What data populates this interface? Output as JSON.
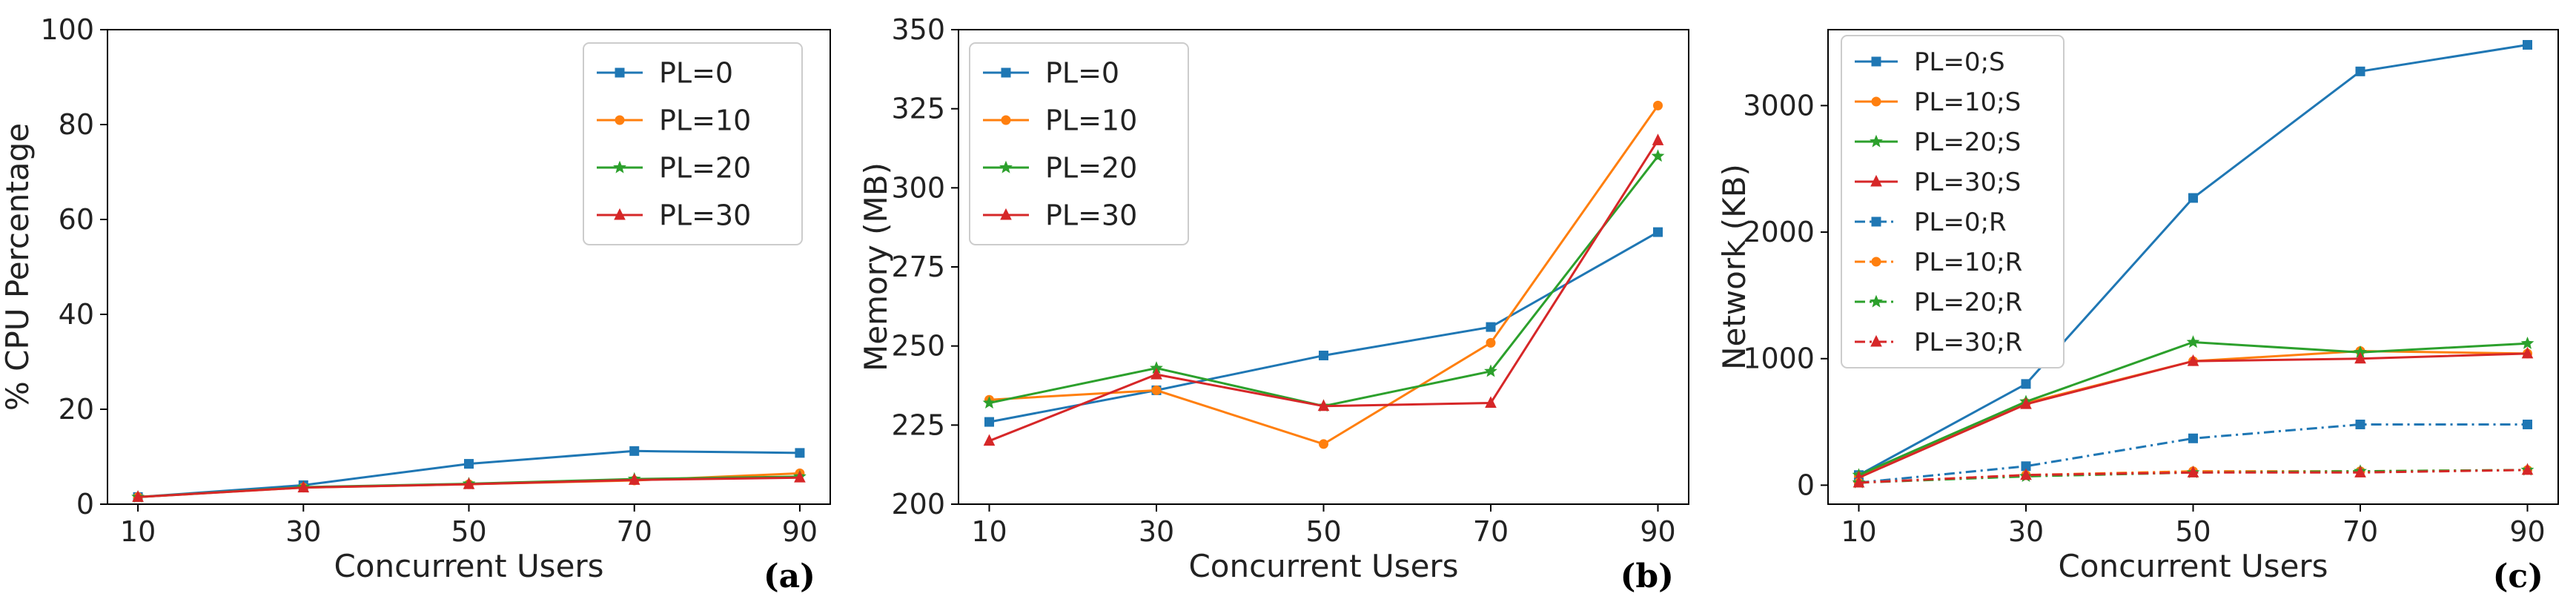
{
  "colors": {
    "PL=0": "#1f77b4",
    "PL=10": "#ff7f0e",
    "PL=20": "#2ca02c",
    "PL=30": "#d62728"
  },
  "chart_data": [
    {
      "type": "line",
      "panel_label": "(a)",
      "xlabel": "Concurrent Users",
      "ylabel": "% CPU Percentage",
      "x": [
        10,
        30,
        50,
        70,
        90
      ],
      "x_ticks": [
        "10",
        "30",
        "50",
        "70",
        "90"
      ],
      "ylim": [
        0,
        100
      ],
      "y_ticks": [
        0,
        20,
        40,
        60,
        80,
        100
      ],
      "legend_position": "top-right",
      "series": [
        {
          "name": "PL=0",
          "color_key": "PL=0",
          "marker": "square",
          "dash": "solid",
          "values": [
            1.5,
            4.0,
            8.5,
            11.2,
            10.8
          ]
        },
        {
          "name": "PL=10",
          "color_key": "PL=10",
          "marker": "circle",
          "dash": "solid",
          "values": [
            1.5,
            3.5,
            4.2,
            5.0,
            6.5
          ]
        },
        {
          "name": "PL=20",
          "color_key": "PL=20",
          "marker": "star",
          "dash": "solid",
          "values": [
            1.5,
            3.6,
            4.3,
            5.3,
            5.8
          ]
        },
        {
          "name": "PL=30",
          "color_key": "PL=30",
          "marker": "triangle",
          "dash": "solid",
          "values": [
            1.5,
            3.5,
            4.2,
            5.1,
            5.6
          ]
        }
      ]
    },
    {
      "type": "line",
      "panel_label": "(b)",
      "xlabel": "Concurrent Users",
      "ylabel": "Memory (MB)",
      "x": [
        10,
        30,
        50,
        70,
        90
      ],
      "x_ticks": [
        "10",
        "30",
        "50",
        "70",
        "90"
      ],
      "ylim": [
        200,
        350
      ],
      "y_ticks": [
        200,
        225,
        250,
        275,
        300,
        325,
        350
      ],
      "legend_position": "top-left",
      "series": [
        {
          "name": "PL=0",
          "color_key": "PL=0",
          "marker": "square",
          "dash": "solid",
          "values": [
            226,
            236,
            247,
            256,
            286
          ]
        },
        {
          "name": "PL=10",
          "color_key": "PL=10",
          "marker": "circle",
          "dash": "solid",
          "values": [
            233,
            236,
            219,
            251,
            326
          ]
        },
        {
          "name": "PL=20",
          "color_key": "PL=20",
          "marker": "star",
          "dash": "solid",
          "values": [
            232,
            243,
            231,
            242,
            310
          ]
        },
        {
          "name": "PL=30",
          "color_key": "PL=30",
          "marker": "triangle",
          "dash": "solid",
          "values": [
            220,
            241,
            231,
            232,
            315
          ]
        }
      ]
    },
    {
      "type": "line",
      "panel_label": "(c)",
      "xlabel": "Concurrent Users",
      "ylabel": "Network (KB)",
      "x": [
        10,
        30,
        50,
        70,
        90
      ],
      "x_ticks": [
        "10",
        "30",
        "50",
        "70",
        "90"
      ],
      "ylim": [
        -150,
        3600
      ],
      "y_ticks": [
        0,
        1000,
        2000,
        3000
      ],
      "legend_position": "top-left",
      "series": [
        {
          "name": "PL=0;S",
          "color_key": "PL=0",
          "marker": "square",
          "dash": "solid",
          "values": [
            80,
            800,
            2270,
            3270,
            3480
          ]
        },
        {
          "name": "PL=10;S",
          "color_key": "PL=10",
          "marker": "circle",
          "dash": "solid",
          "values": [
            70,
            650,
            980,
            1060,
            1040
          ]
        },
        {
          "name": "PL=20;S",
          "color_key": "PL=20",
          "marker": "star",
          "dash": "solid",
          "values": [
            80,
            660,
            1130,
            1050,
            1120
          ]
        },
        {
          "name": "PL=30;S",
          "color_key": "PL=30",
          "marker": "triangle",
          "dash": "solid",
          "values": [
            60,
            640,
            980,
            1000,
            1040
          ]
        },
        {
          "name": "PL=0;R",
          "color_key": "PL=0",
          "marker": "square",
          "dash": "dashdot",
          "values": [
            20,
            150,
            370,
            480,
            480
          ]
        },
        {
          "name": "PL=10;R",
          "color_key": "PL=10",
          "marker": "circle",
          "dash": "dashdot",
          "values": [
            20,
            80,
            110,
            110,
            120
          ]
        },
        {
          "name": "PL=20;R",
          "color_key": "PL=20",
          "marker": "star",
          "dash": "dashdot",
          "values": [
            20,
            70,
            100,
            110,
            120
          ]
        },
        {
          "name": "PL=30;R",
          "color_key": "PL=30",
          "marker": "triangle",
          "dash": "dashdot",
          "values": [
            20,
            80,
            100,
            100,
            120
          ]
        }
      ]
    }
  ]
}
